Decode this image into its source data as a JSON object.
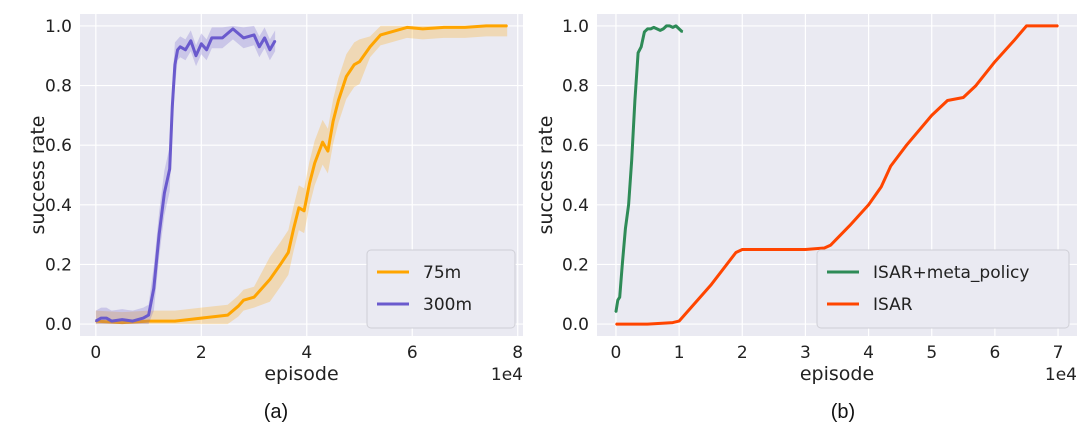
{
  "captions": [
    "(a)",
    "(b)"
  ],
  "chart_data": [
    {
      "type": "line",
      "xlabel": "episode",
      "ylabel": "success rate",
      "x_exponent": "1e4",
      "xlim": [
        -0.3,
        8.1
      ],
      "ylim": [
        -0.04,
        1.04
      ],
      "x_ticks": [
        0,
        2,
        4,
        6,
        8
      ],
      "y_ticks": [
        0.0,
        0.2,
        0.4,
        0.6,
        0.8,
        1.0
      ],
      "grid": true,
      "legend_position": "bottom-right",
      "caption": "(a)",
      "series": [
        {
          "name": "75m",
          "color": "#FFA500",
          "band": true,
          "points": [
            [
              0,
              0.01
            ],
            [
              0.5,
              0.005
            ],
            [
              1.0,
              0.01
            ],
            [
              1.5,
              0.01
            ],
            [
              2.0,
              0.02
            ],
            [
              2.5,
              0.03
            ],
            [
              2.7,
              0.06
            ],
            [
              2.8,
              0.08
            ],
            [
              3.0,
              0.09
            ],
            [
              3.3,
              0.15
            ],
            [
              3.5,
              0.2
            ],
            [
              3.65,
              0.24
            ],
            [
              3.75,
              0.32
            ],
            [
              3.85,
              0.39
            ],
            [
              3.95,
              0.38
            ],
            [
              4.05,
              0.47
            ],
            [
              4.15,
              0.54
            ],
            [
              4.3,
              0.61
            ],
            [
              4.4,
              0.58
            ],
            [
              4.5,
              0.68
            ],
            [
              4.6,
              0.75
            ],
            [
              4.75,
              0.83
            ],
            [
              4.9,
              0.87
            ],
            [
              5.0,
              0.88
            ],
            [
              5.2,
              0.93
            ],
            [
              5.4,
              0.97
            ],
            [
              5.6,
              0.98
            ],
            [
              5.9,
              0.995
            ],
            [
              6.2,
              0.99
            ],
            [
              6.6,
              0.995
            ],
            [
              7.0,
              0.995
            ],
            [
              7.4,
              1.0
            ],
            [
              7.8,
              1.0
            ]
          ]
        },
        {
          "name": "300m",
          "color": "#6A5ACD",
          "band": true,
          "points": [
            [
              0,
              0.01
            ],
            [
              0.1,
              0.02
            ],
            [
              0.2,
              0.02
            ],
            [
              0.3,
              0.01
            ],
            [
              0.5,
              0.015
            ],
            [
              0.7,
              0.01
            ],
            [
              0.9,
              0.02
            ],
            [
              1.0,
              0.03
            ],
            [
              1.1,
              0.12
            ],
            [
              1.2,
              0.3
            ],
            [
              1.3,
              0.44
            ],
            [
              1.4,
              0.52
            ],
            [
              1.45,
              0.73
            ],
            [
              1.5,
              0.87
            ],
            [
              1.55,
              0.92
            ],
            [
              1.6,
              0.93
            ],
            [
              1.7,
              0.92
            ],
            [
              1.8,
              0.95
            ],
            [
              1.9,
              0.9
            ],
            [
              2.0,
              0.94
            ],
            [
              2.1,
              0.92
            ],
            [
              2.2,
              0.96
            ],
            [
              2.4,
              0.96
            ],
            [
              2.6,
              0.99
            ],
            [
              2.8,
              0.96
            ],
            [
              3.0,
              0.97
            ],
            [
              3.1,
              0.93
            ],
            [
              3.2,
              0.96
            ],
            [
              3.3,
              0.92
            ],
            [
              3.4,
              0.95
            ]
          ]
        }
      ]
    },
    {
      "type": "line",
      "xlabel": "episode",
      "ylabel": "success rate",
      "x_exponent": "1e4",
      "xlim": [
        -0.3,
        7.3
      ],
      "ylim": [
        -0.04,
        1.04
      ],
      "x_ticks": [
        0,
        1,
        2,
        3,
        4,
        5,
        6,
        7
      ],
      "y_ticks": [
        0.0,
        0.2,
        0.4,
        0.6,
        0.8,
        1.0
      ],
      "grid": true,
      "legend_position": "bottom-right",
      "caption": "(b)",
      "series": [
        {
          "name": "ISAR+meta_policy",
          "color": "#2E8B57",
          "band": false,
          "points": [
            [
              0,
              0.04
            ],
            [
              0.03,
              0.08
            ],
            [
              0.06,
              0.09
            ],
            [
              0.1,
              0.2
            ],
            [
              0.15,
              0.32
            ],
            [
              0.2,
              0.4
            ],
            [
              0.25,
              0.55
            ],
            [
              0.3,
              0.75
            ],
            [
              0.35,
              0.91
            ],
            [
              0.4,
              0.93
            ],
            [
              0.45,
              0.98
            ],
            [
              0.5,
              0.99
            ],
            [
              0.55,
              0.99
            ],
            [
              0.6,
              0.995
            ],
            [
              0.65,
              0.99
            ],
            [
              0.7,
              0.985
            ],
            [
              0.75,
              0.99
            ],
            [
              0.8,
              1.0
            ],
            [
              0.85,
              1.0
            ],
            [
              0.9,
              0.995
            ],
            [
              0.95,
              1.0
            ],
            [
              1.0,
              0.99
            ],
            [
              1.05,
              0.98
            ]
          ]
        },
        {
          "name": "ISAR",
          "color": "#FF4500",
          "band": false,
          "points": [
            [
              0,
              0.0
            ],
            [
              0.5,
              0.0
            ],
            [
              0.9,
              0.005
            ],
            [
              1.0,
              0.01
            ],
            [
              1.5,
              0.13
            ],
            [
              1.9,
              0.24
            ],
            [
              2.0,
              0.25
            ],
            [
              2.5,
              0.25
            ],
            [
              3.0,
              0.25
            ],
            [
              3.3,
              0.255
            ],
            [
              3.4,
              0.265
            ],
            [
              3.7,
              0.33
            ],
            [
              4.0,
              0.4
            ],
            [
              4.2,
              0.46
            ],
            [
              4.35,
              0.53
            ],
            [
              4.6,
              0.6
            ],
            [
              5.0,
              0.7
            ],
            [
              5.25,
              0.75
            ],
            [
              5.5,
              0.76
            ],
            [
              5.7,
              0.8
            ],
            [
              6.0,
              0.88
            ],
            [
              6.3,
              0.95
            ],
            [
              6.5,
              1.0
            ],
            [
              6.7,
              1.0
            ],
            [
              7.0,
              1.0
            ]
          ]
        }
      ]
    }
  ]
}
